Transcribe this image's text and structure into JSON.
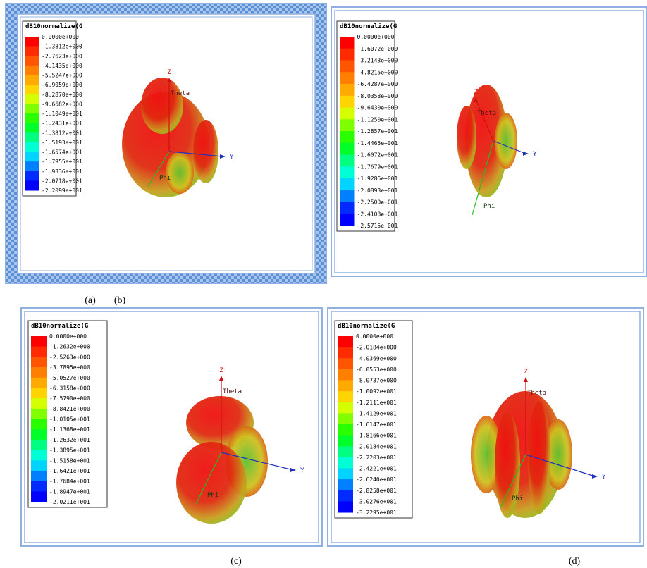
{
  "panels": [
    {
      "legend_title": "dB10normalize(G",
      "legend_labels": [
        "0.0000e+000",
        "-1.3812e+000",
        "-2.7623e+000",
        "-4.1435e+000",
        "-5.5247e+000",
        "-6.9059e+000",
        "-8.2870e+000",
        "-9.6682e+000",
        "-1.1049e+001",
        "-1.2431e+001",
        "-1.3812e+001",
        "-1.5193e+001",
        "-1.6574e+001",
        "-1.7955e+001",
        "-1.9336e+001",
        "-2.0718e+001",
        "-2.2099e+001"
      ],
      "axes": {
        "z": "Z",
        "y": "Y",
        "theta": "Theta",
        "phi": "Phi"
      },
      "caption": "(a)"
    },
    {
      "legend_title": "dB10normalize(G",
      "legend_labels": [
        "0.0000e+000",
        "-1.6072e+000",
        "-3.2143e+000",
        "-4.8215e+000",
        "-6.4287e+000",
        "-8.0358e+000",
        "-9.6430e+000",
        "-1.1250e+001",
        "-1.2857e+001",
        "-1.4465e+001",
        "-1.6072e+001",
        "-1.7679e+001",
        "-1.9286e+001",
        "-2.0893e+001",
        "-2.2500e+001",
        "-2.4108e+001",
        "-2.5715e+001"
      ],
      "axes": {
        "z": "Z",
        "y": "Y",
        "theta": "Theta",
        "phi": "Phi"
      },
      "caption": "(b)"
    },
    {
      "legend_title": "dB10normalize(G",
      "legend_labels": [
        "0.0000e+000",
        "-1.2632e+000",
        "-2.5263e+000",
        "-3.7895e+000",
        "-5.0527e+000",
        "-6.3158e+000",
        "-7.5790e+000",
        "-8.8421e+000",
        "-1.0105e+001",
        "-1.1368e+001",
        "-1.2632e+001",
        "-1.3895e+001",
        "-1.5158e+001",
        "-1.6421e+001",
        "-1.7684e+001",
        "-1.8947e+001",
        "-2.0211e+001"
      ],
      "axes": {
        "z": "Z",
        "y": "Y",
        "theta": "Theta",
        "phi": "Phi"
      },
      "caption": "(c)"
    },
    {
      "legend_title": "dB10normalize(G",
      "legend_labels": [
        "0.0000e+000",
        "-2.0184e+000",
        "-4.0369e+000",
        "-6.0553e+000",
        "-8.0737e+000",
        "-1.0092e+001",
        "-1.2111e+001",
        "-1.4129e+001",
        "-1.6147e+001",
        "-1.8166e+001",
        "-2.0184e+001",
        "-2.2203e+001",
        "-2.4221e+001",
        "-2.6240e+001",
        "-2.8258e+001",
        "-3.0276e+001",
        "-3.2295e+001"
      ],
      "axes": {
        "z": "Z",
        "y": "Y",
        "theta": "Theta",
        "phi": "Phi"
      },
      "caption": "(d)"
    }
  ]
}
